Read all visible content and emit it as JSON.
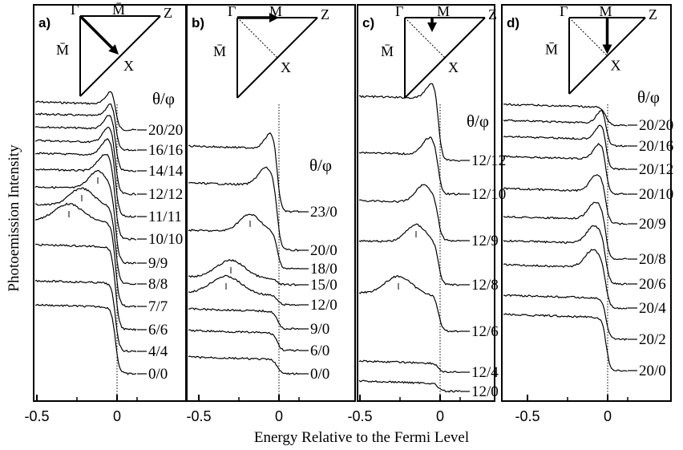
{
  "figure": {
    "ylabel": "Photoemission Intensity",
    "xlabel": "Energy Relative to the Fermi Level",
    "tick_labels": [
      "-0.5",
      "0"
    ],
    "header": "θ/φ"
  },
  "chart_data": [
    {
      "panel": "a)",
      "type": "line",
      "xlim": [
        -0.7,
        0.25
      ],
      "xticks": [
        -0.5,
        0
      ],
      "brillouin_zone": {
        "corners": [
          "Γ",
          "M̄",
          "Z",
          "M̄",
          "X"
        ],
        "arrow": "Γ→X"
      },
      "series": [
        {
          "name": "20/20",
          "peak": -0.02
        },
        {
          "name": "16/16",
          "peak": -0.02
        },
        {
          "name": "14/14",
          "peak": -0.03
        },
        {
          "name": "12/12",
          "peak": -0.04
        },
        {
          "name": "11/11",
          "peak": -0.05
        },
        {
          "name": "10/10",
          "peak": -0.07
        },
        {
          "name": "9/9",
          "peak": -0.12
        },
        {
          "name": "8/8",
          "peak": -0.22
        },
        {
          "name": "7/7",
          "peak": -0.3
        },
        {
          "name": "6/6",
          "peak": null
        },
        {
          "name": "4/4",
          "peak": null
        },
        {
          "name": "0/0",
          "peak": null
        }
      ]
    },
    {
      "panel": "b)",
      "type": "line",
      "xlim": [
        -0.7,
        0.25
      ],
      "xticks": [
        -0.5,
        0
      ],
      "brillouin_zone": {
        "corners": [
          "Γ",
          "M̄",
          "Z",
          "M̄",
          "X"
        ],
        "arrow": "Γ→M̄"
      },
      "series": [
        {
          "name": "23/0",
          "peak": -0.04
        },
        {
          "name": "20/0",
          "peak": -0.08
        },
        {
          "name": "18/0",
          "peak": -0.18
        },
        {
          "name": "15/0",
          "peak": -0.3
        },
        {
          "name": "12/0",
          "peak": -0.33
        },
        {
          "name": "9/0",
          "peak": null
        },
        {
          "name": "6/0",
          "peak": null
        },
        {
          "name": "0/0",
          "peak": null
        }
      ]
    },
    {
      "panel": "c)",
      "type": "line",
      "xlim": [
        -0.7,
        0.25
      ],
      "xticks": [
        -0.5,
        0
      ],
      "brillouin_zone": {
        "corners": [
          "Γ",
          "M̄",
          "Z",
          "M̄",
          "X"
        ],
        "arrow": "M̄ direction (vertical)"
      },
      "series": [
        {
          "name": "12/12",
          "peak": -0.04
        },
        {
          "name": "12/10",
          "peak": -0.06
        },
        {
          "name": "12/9",
          "peak": -0.1
        },
        {
          "name": "12/8",
          "peak": -0.15
        },
        {
          "name": "12/6",
          "peak": -0.26
        },
        {
          "name": "12/4",
          "peak": null
        },
        {
          "name": "12/0",
          "peak": null
        }
      ]
    },
    {
      "panel": "d)",
      "type": "line",
      "xlim": [
        -0.7,
        0.25
      ],
      "xticks": [
        -0.5,
        0
      ],
      "brillouin_zone": {
        "corners": [
          "Γ",
          "M̄",
          "Z",
          "M̄",
          "X"
        ],
        "arrow": "M̄→X"
      },
      "series": [
        {
          "name": "20/20",
          "peak": null
        },
        {
          "name": "20/16",
          "peak": -0.02
        },
        {
          "name": "20/12",
          "peak": -0.03
        },
        {
          "name": "20/10",
          "peak": -0.04
        },
        {
          "name": "20/9",
          "peak": -0.06
        },
        {
          "name": "20/8",
          "peak": -0.07
        },
        {
          "name": "20/6",
          "peak": -0.08
        },
        {
          "name": "20/4",
          "peak": -0.09
        },
        {
          "name": "20/2",
          "peak": null
        },
        {
          "name": "20/0",
          "peak": null
        }
      ]
    }
  ]
}
